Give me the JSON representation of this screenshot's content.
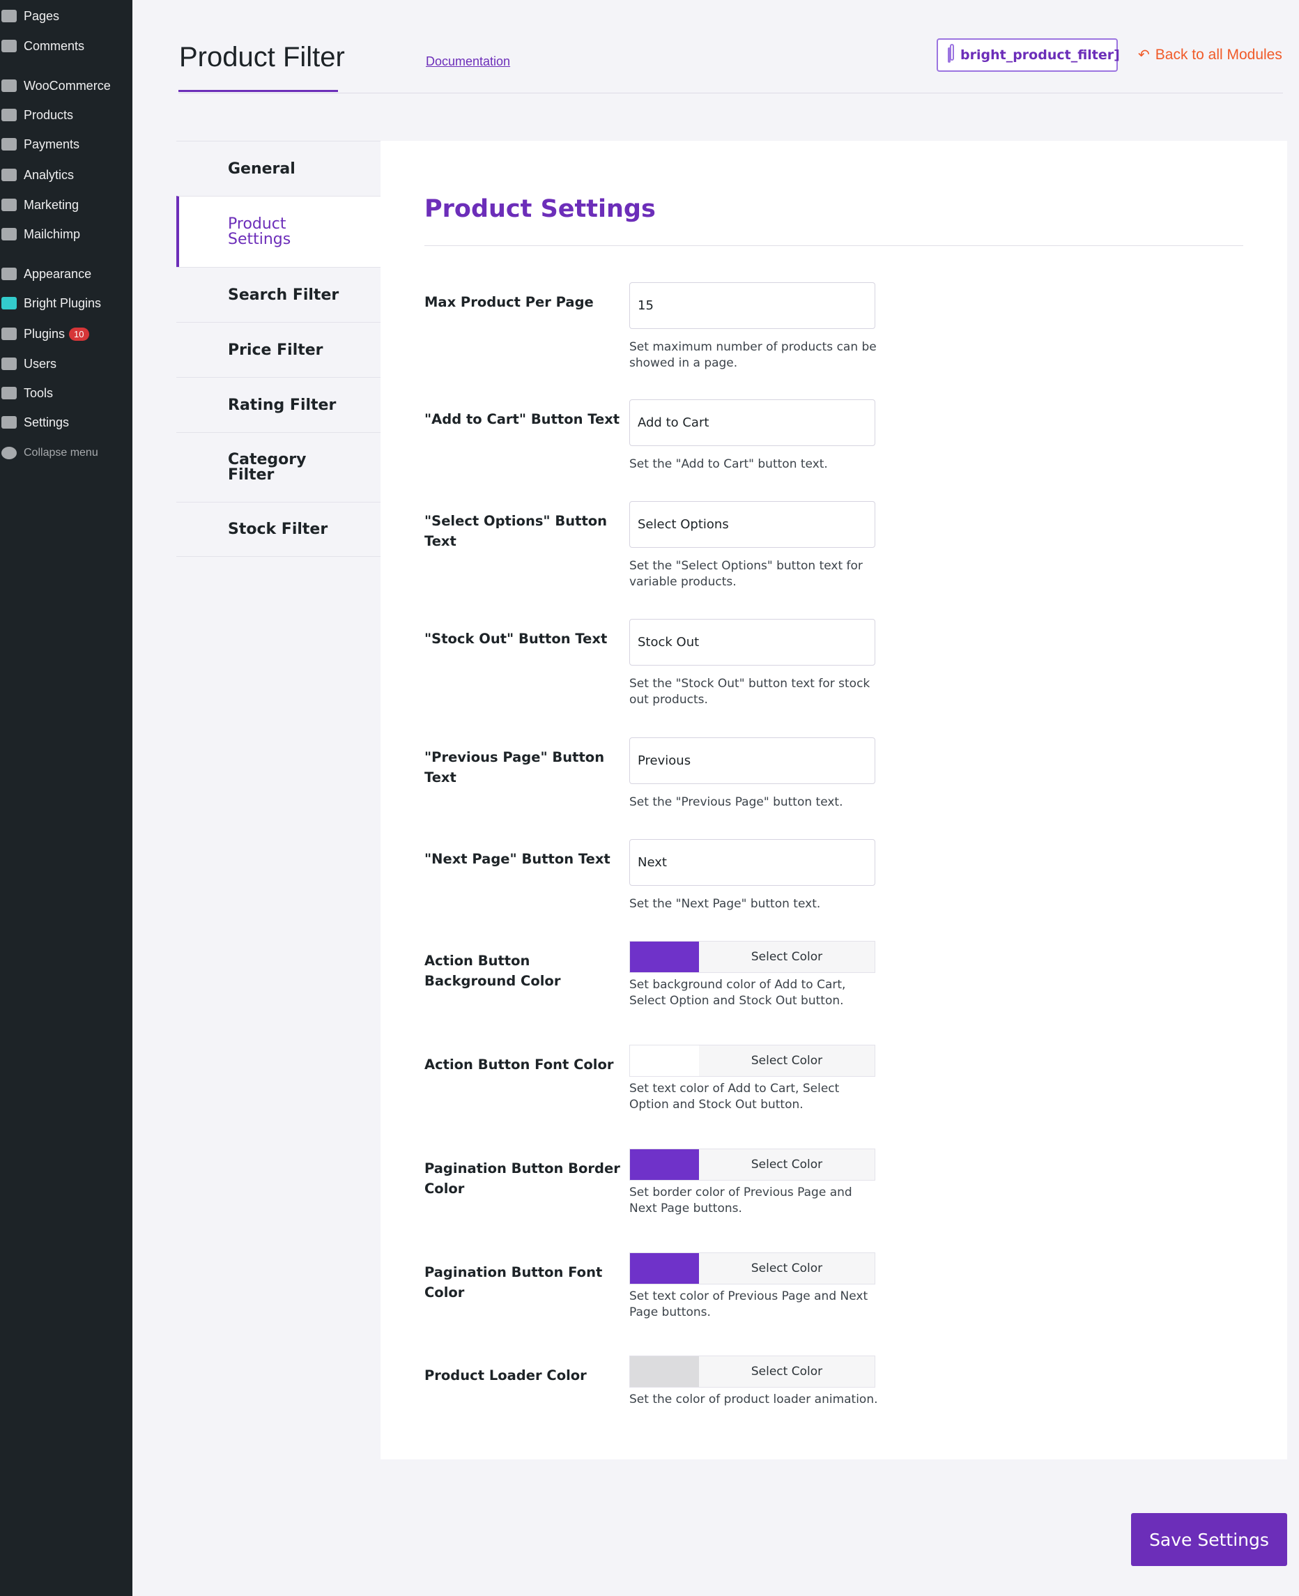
{
  "sidebar": {
    "items": [
      {
        "label": "Pages",
        "icon": "pages-icon"
      },
      {
        "label": "Comments",
        "icon": "comments-icon"
      },
      {
        "label": "WooCommerce",
        "icon": "woocommerce-icon"
      },
      {
        "label": "Products",
        "icon": "products-icon"
      },
      {
        "label": "Payments",
        "icon": "payments-icon"
      },
      {
        "label": "Analytics",
        "icon": "analytics-icon"
      },
      {
        "label": "Marketing",
        "icon": "marketing-icon"
      },
      {
        "label": "Mailchimp",
        "icon": "mailchimp-icon"
      },
      {
        "label": "Appearance",
        "icon": "appearance-icon"
      },
      {
        "label": "Bright Plugins",
        "icon": "bright-plugins-icon"
      },
      {
        "label": "Plugins",
        "icon": "plugins-icon",
        "badge": "10"
      },
      {
        "label": "Users",
        "icon": "users-icon"
      },
      {
        "label": "Tools",
        "icon": "tools-icon"
      },
      {
        "label": "Settings",
        "icon": "settings-icon"
      }
    ],
    "collapse": "Collapse menu"
  },
  "header": {
    "title": "Product Filter",
    "documentation": "Documentation",
    "shortcode": "bright_product_filter]",
    "back": "Back to all Modules"
  },
  "tabs": [
    "General",
    "Product Settings",
    "Search Filter",
    "Price Filter",
    "Rating Filter",
    "Category Filter",
    "Stock Filter"
  ],
  "main": {
    "heading": "Product Settings",
    "fields": [
      {
        "label": "Max Product Per Page",
        "value": "15",
        "help": "Set maximum number of products can be showed in a page."
      },
      {
        "label": "\"Add to Cart\" Button Text",
        "value": "Add to Cart",
        "help": "Set the \"Add to Cart\" button text."
      },
      {
        "label": "\"Select Options\" Button Text",
        "value": "Select Options",
        "help": "Set the \"Select Options\" button text for variable products."
      },
      {
        "label": "\"Stock Out\" Button Text",
        "value": "Stock Out",
        "help": "Set the \"Stock Out\" button text for stock out products."
      },
      {
        "label": "\"Previous Page\" Button Text",
        "value": "Previous",
        "help": "Set the \"Previous Page\" button text."
      },
      {
        "label": "\"Next Page\" Button Text",
        "value": "Next",
        "help": "Set the \"Next Page\" button text."
      },
      {
        "label": "Action Button Background Color",
        "color": "#6f32c9",
        "button": "Select Color",
        "help": "Set background color of Add to Cart, Select Option and Stock Out button."
      },
      {
        "label": "Action Button Font Color",
        "color": "#ffffff",
        "button": "Select Color",
        "help": "Set text color of Add to Cart, Select Option and Stock Out button."
      },
      {
        "label": "Pagination Button Border Color",
        "color": "#6f32c9",
        "button": "Select Color",
        "help": "Set border color of Previous Page and Next Page buttons."
      },
      {
        "label": "Pagination Button Font Color",
        "color": "#6f32c9",
        "button": "Select Color",
        "help": "Set text color of Previous Page and Next Page buttons."
      },
      {
        "label": "Product Loader Color",
        "color": "#dcdcde",
        "button": "Select Color",
        "help": "Set the color of product loader animation."
      }
    ]
  },
  "save": "Save Settings",
  "colors": {
    "accent": "#6c2eb9",
    "back_link": "#f05a28",
    "sidebar": "#1d2327"
  }
}
